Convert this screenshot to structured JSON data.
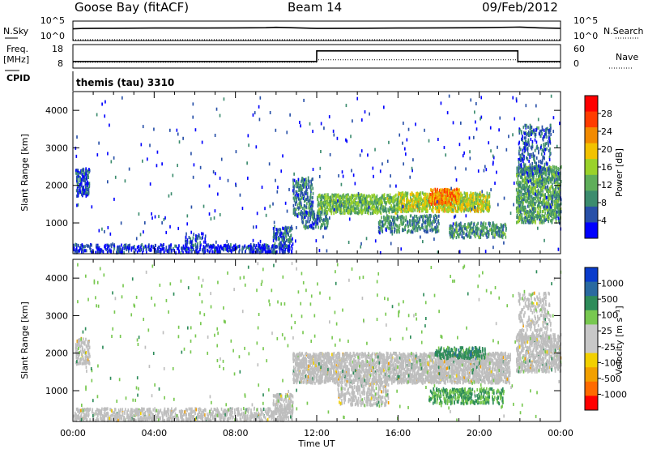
{
  "header": {
    "station": "Goose Bay (fitACF)",
    "beam": "Beam 14",
    "date": "09/Feb/2012"
  },
  "strip_labels": {
    "nsky": "N.Sky",
    "nsky_ticks": [
      "10^5",
      "10^0"
    ],
    "nsearch": "N.Search",
    "freq": "Freq.",
    "freq_unit": "[MHz]",
    "freq_ticks": [
      "18",
      "8"
    ],
    "nave": "Nave",
    "nave_ticks": [
      "60",
      "0"
    ],
    "cpid": "CPID",
    "cpid_value": "themis (tau) 3310"
  },
  "colors": {
    "power_scale": [
      "#0000ff",
      "#2850a8",
      "#3c8c6e",
      "#5fae5a",
      "#9ad22a",
      "#f2c200",
      "#f28a00",
      "#ff3c00",
      "#ff0000"
    ],
    "velocity_scale": [
      "#ff0000",
      "#ff6a00",
      "#f2a000",
      "#f2d000",
      "#c8c8c8",
      "#c8c8c8",
      "#78c850",
      "#2e8c5a",
      "#2a6aa0",
      "#0a3ccc"
    ],
    "ground_scatter": "#bebebe"
  },
  "chart_data": [
    {
      "type": "line",
      "name": "sky-noise-strip",
      "x_range": [
        0,
        24
      ],
      "series": [
        {
          "name": "N.Sky",
          "style": "solid",
          "x": [
            0,
            0.5,
            2,
            4,
            6,
            8,
            9.5,
            10,
            12,
            14,
            16,
            18,
            20,
            22,
            23,
            24
          ],
          "y": [
            0.6,
            0.62,
            0.63,
            0.64,
            0.64,
            0.65,
            0.66,
            0.68,
            0.62,
            0.63,
            0.64,
            0.65,
            0.66,
            0.69,
            0.65,
            0.63
          ]
        },
        {
          "name": "N.Search",
          "style": "dotted",
          "x": [
            0,
            24
          ],
          "y": [
            0.04,
            0.04
          ]
        }
      ]
    },
    {
      "type": "line",
      "name": "frequency-nave-strip",
      "x_range": [
        0,
        24
      ],
      "series": [
        {
          "name": "Freq. [MHz]",
          "style": "solid",
          "ylim": [
            8,
            18
          ],
          "x": [
            0,
            12,
            12,
            21.9,
            21.9,
            24
          ],
          "y": [
            10.8,
            10.8,
            15.3,
            15.3,
            10.8,
            10.8
          ]
        },
        {
          "name": "Nave",
          "style": "dotted",
          "ylim": [
            0,
            60
          ],
          "x": [
            0,
            12,
            12,
            21.9,
            21.9,
            24
          ],
          "y": [
            15,
            15,
            21,
            21,
            15,
            15
          ]
        }
      ]
    },
    {
      "type": "heatmap",
      "name": "power-panel",
      "xlabel": "",
      "ylabel": "Slant Range [km]",
      "xlim": [
        0,
        24
      ],
      "ylim": [
        180,
        4500
      ],
      "yticks": [
        1000,
        2000,
        3000,
        4000
      ],
      "colorbar": {
        "label": "Power [dB]",
        "range": [
          0,
          32
        ],
        "ticks": [
          4,
          8,
          12,
          16,
          20,
          24,
          28
        ]
      },
      "regions": [
        {
          "t": [
            0,
            10.8
          ],
          "r": [
            200,
            420
          ],
          "v": 3,
          "d": 0.55
        },
        {
          "t": [
            0.1,
            0.8
          ],
          "r": [
            1700,
            2450
          ],
          "v": 5,
          "d": 0.6
        },
        {
          "t": [
            5.5,
            6.5
          ],
          "r": [
            420,
            750
          ],
          "v": 5,
          "d": 0.3
        },
        {
          "t": [
            9.8,
            10.8
          ],
          "r": [
            380,
            900
          ],
          "v": 6,
          "d": 0.5
        },
        {
          "t": [
            10.8,
            11.8
          ],
          "r": [
            1200,
            2200
          ],
          "v": 8,
          "d": 0.5
        },
        {
          "t": [
            11.2,
            12.6
          ],
          "r": [
            850,
            1300
          ],
          "v": 7,
          "d": 0.45
        },
        {
          "t": [
            12.0,
            16.0
          ],
          "r": [
            1250,
            1750
          ],
          "v": 13,
          "d": 0.85
        },
        {
          "t": [
            16.0,
            20.5
          ],
          "r": [
            1300,
            1800
          ],
          "v": 17,
          "d": 0.9
        },
        {
          "t": [
            17.5,
            19.0
          ],
          "r": [
            1500,
            1900
          ],
          "v": 23,
          "d": 0.9
        },
        {
          "t": [
            15.0,
            18.0
          ],
          "r": [
            750,
            1200
          ],
          "v": 9,
          "d": 0.5
        },
        {
          "t": [
            18.5,
            21.3
          ],
          "r": [
            600,
            1000
          ],
          "v": 10,
          "d": 0.6
        },
        {
          "t": [
            21.8,
            24
          ],
          "r": [
            1000,
            2500
          ],
          "v": 11,
          "d": 0.75
        },
        {
          "t": [
            21.9,
            23.5
          ],
          "r": [
            2300,
            3600
          ],
          "v": 6,
          "d": 0.3
        },
        {
          "t": [
            0,
            24
          ],
          "r": [
            200,
            4400
          ],
          "v": 4,
          "d": 0.008
        }
      ]
    },
    {
      "type": "heatmap",
      "name": "velocity-panel",
      "xlabel": "Time UT",
      "ylabel": "Slant Range [km]",
      "xlim": [
        0,
        24
      ],
      "ylim": [
        180,
        4500
      ],
      "xticks": [
        "00:00",
        "04:00",
        "08:00",
        "12:00",
        "16:00",
        "20:00",
        "00:00"
      ],
      "yticks": [
        1000,
        2000,
        3000,
        4000
      ],
      "colorbar": {
        "label": "Velocity [m s⁻¹]",
        "ticks": [
          "1000",
          "500",
          "100",
          "25",
          "-25",
          "-100",
          "-500",
          "-1000"
        ]
      },
      "regions": [
        {
          "t": [
            0,
            10.8
          ],
          "r": [
            200,
            520
          ],
          "v": 0,
          "d": 0.55
        },
        {
          "t": [
            0.1,
            0.8
          ],
          "r": [
            1700,
            2400
          ],
          "v": 0,
          "d": 0.6
        },
        {
          "t": [
            9.8,
            10.8
          ],
          "r": [
            400,
            900
          ],
          "v": 0,
          "d": 0.6
        },
        {
          "t": [
            10.8,
            21.5
          ],
          "r": [
            1200,
            2000
          ],
          "v": 0,
          "d": 0.85
        },
        {
          "t": [
            13.0,
            15.5
          ],
          "r": [
            600,
            1200
          ],
          "v": 0,
          "d": 0.45
        },
        {
          "t": [
            17.8,
            20.3
          ],
          "r": [
            1850,
            2150
          ],
          "v": 300,
          "d": 0.6
        },
        {
          "t": [
            17.5,
            21.2
          ],
          "r": [
            650,
            1050
          ],
          "v": 120,
          "d": 0.55
        },
        {
          "t": [
            21.8,
            24
          ],
          "r": [
            1500,
            2500
          ],
          "v": 0,
          "d": 0.7
        },
        {
          "t": [
            21.9,
            23.5
          ],
          "r": [
            2300,
            3600
          ],
          "v": 0,
          "d": 0.3
        },
        {
          "t": [
            0,
            24
          ],
          "r": [
            200,
            4400
          ],
          "v": 60,
          "d": 0.008
        }
      ]
    }
  ]
}
